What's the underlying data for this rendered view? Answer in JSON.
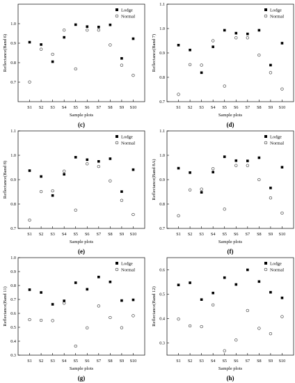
{
  "chart_data": [
    {
      "type": "scatter",
      "panel_label": "(c)",
      "xlabel": "Sample plots",
      "ylabel": "Reflectance(Band 6)",
      "categories": [
        "S1",
        "S2",
        "S3",
        "S4",
        "S5",
        "S6",
        "S7",
        "S8",
        "S9",
        "S10"
      ],
      "ylim": [
        0.6,
        1.1
      ],
      "yticks": [
        "0.7",
        "0.8",
        "0.9",
        "1.0"
      ],
      "legend_position": "top-right",
      "series": [
        {
          "name": "Lodge",
          "marker": "filled-square",
          "values": [
            0.905,
            0.893,
            0.805,
            0.93,
            0.995,
            0.985,
            0.983,
            0.994,
            0.822,
            0.923
          ]
        },
        {
          "name": "Normal",
          "marker": "open-circle",
          "values": [
            0.701,
            0.869,
            0.843,
            0.967,
            0.768,
            0.967,
            0.967,
            0.891,
            0.787,
            0.735
          ]
        }
      ]
    },
    {
      "type": "scatter",
      "panel_label": "(d)",
      "xlabel": "Sample plots",
      "ylabel": "Reflectance(Band 7)",
      "categories": [
        "S1",
        "S2",
        "S3",
        "S4",
        "S5",
        "S6",
        "S7",
        "S8",
        "S9",
        "S10"
      ],
      "ylim": [
        0.7,
        1.1
      ],
      "yticks": [
        "0.7",
        "0.8",
        "0.9",
        "1.0",
        "1.1"
      ],
      "legend_position": "top-right",
      "series": [
        {
          "name": "Lodge",
          "marker": "filled-square",
          "values": [
            0.932,
            0.912,
            0.819,
            0.925,
            0.993,
            0.981,
            0.978,
            0.993,
            0.85,
            0.94
          ]
        },
        {
          "name": "Normal",
          "marker": "open-circle",
          "values": [
            0.73,
            0.852,
            0.85,
            0.95,
            0.764,
            0.962,
            0.962,
            0.891,
            0.819,
            0.752
          ]
        }
      ]
    },
    {
      "type": "scatter",
      "panel_label": "(e)",
      "xlabel": "Sample plots",
      "ylabel": "Reflectance(Band 8)",
      "categories": [
        "S1",
        "S2",
        "S3",
        "S4",
        "S5",
        "S6",
        "S7",
        "S8",
        "S9",
        "S10"
      ],
      "ylim": [
        0.7,
        1.1
      ],
      "yticks": [
        "0.7",
        "0.8",
        "0.9",
        "1.0",
        "1.1"
      ],
      "legend_position": "top-right",
      "series": [
        {
          "name": "Lodge",
          "marker": "filled-square",
          "values": [
            0.937,
            0.913,
            0.835,
            0.922,
            0.992,
            0.982,
            0.975,
            0.986,
            0.851,
            0.941
          ]
        },
        {
          "name": "Normal",
          "marker": "open-circle",
          "values": [
            0.734,
            0.851,
            0.854,
            0.935,
            0.775,
            0.965,
            0.954,
            0.895,
            0.815,
            0.757
          ]
        }
      ]
    },
    {
      "type": "scatter",
      "panel_label": "(f)",
      "xlabel": "Sample plots",
      "ylabel": "Reflectance(Band 8A)",
      "categories": [
        "S1",
        "S2",
        "S3",
        "S4",
        "S5",
        "S6",
        "S7",
        "S8",
        "S9",
        "S10"
      ],
      "ylim": [
        0.7,
        1.1
      ],
      "yticks": [
        "0.7",
        "0.8",
        "0.9",
        "1.0",
        "1.1"
      ],
      "legend_position": "top-right",
      "series": [
        {
          "name": "Lodge",
          "marker": "filled-square",
          "values": [
            0.947,
            0.929,
            0.848,
            0.931,
            0.994,
            0.978,
            0.977,
            0.99,
            0.866,
            0.951
          ]
        },
        {
          "name": "Normal",
          "marker": "open-circle",
          "values": [
            0.752,
            0.858,
            0.861,
            0.945,
            0.779,
            0.958,
            0.958,
            0.9,
            0.825,
            0.763
          ]
        }
      ]
    },
    {
      "type": "scatter",
      "panel_label": "(g)",
      "xlabel": "Sample plots",
      "ylabel": "Reflectance(Band 11)",
      "categories": [
        "S1",
        "S2",
        "S3",
        "S4",
        "S5",
        "S6",
        "S7",
        "S8",
        "S9",
        "S10"
      ],
      "ylim": [
        0.3,
        1.0
      ],
      "yticks": [
        "0.3",
        "0.4",
        "0.5",
        "0.6",
        "0.7",
        "0.8",
        "0.9",
        "1.0"
      ],
      "legend_position": "top-right",
      "series": [
        {
          "name": "Lodge",
          "marker": "filled-square",
          "values": [
            0.77,
            0.75,
            0.665,
            0.69,
            0.82,
            0.773,
            0.861,
            0.826,
            0.692,
            0.697
          ]
        },
        {
          "name": "Normal",
          "marker": "open-circle",
          "values": [
            0.555,
            0.55,
            0.548,
            0.673,
            0.365,
            0.496,
            0.653,
            0.57,
            0.497,
            0.583
          ]
        }
      ]
    },
    {
      "type": "scatter",
      "panel_label": "(h)",
      "xlabel": "Sample plots",
      "ylabel": "Reflectance(Band 12)",
      "categories": [
        "S1",
        "S2",
        "S3",
        "S4",
        "S5",
        "S6",
        "S7",
        "S8",
        "S9",
        "S10"
      ],
      "ylim": [
        0.25,
        0.65
      ],
      "yticks": [
        "0.3",
        "0.4",
        "0.5",
        "0.6"
      ],
      "legend_position": "top-right",
      "series": [
        {
          "name": "Lodge",
          "marker": "filled-square",
          "values": [
            0.538,
            0.547,
            0.478,
            0.505,
            0.568,
            0.54,
            0.6,
            0.552,
            0.508,
            0.485
          ]
        },
        {
          "name": "Normal",
          "marker": "open-circle",
          "values": [
            0.398,
            0.37,
            0.367,
            0.456,
            0.268,
            0.312,
            0.433,
            0.36,
            0.338,
            0.408
          ]
        }
      ]
    }
  ]
}
